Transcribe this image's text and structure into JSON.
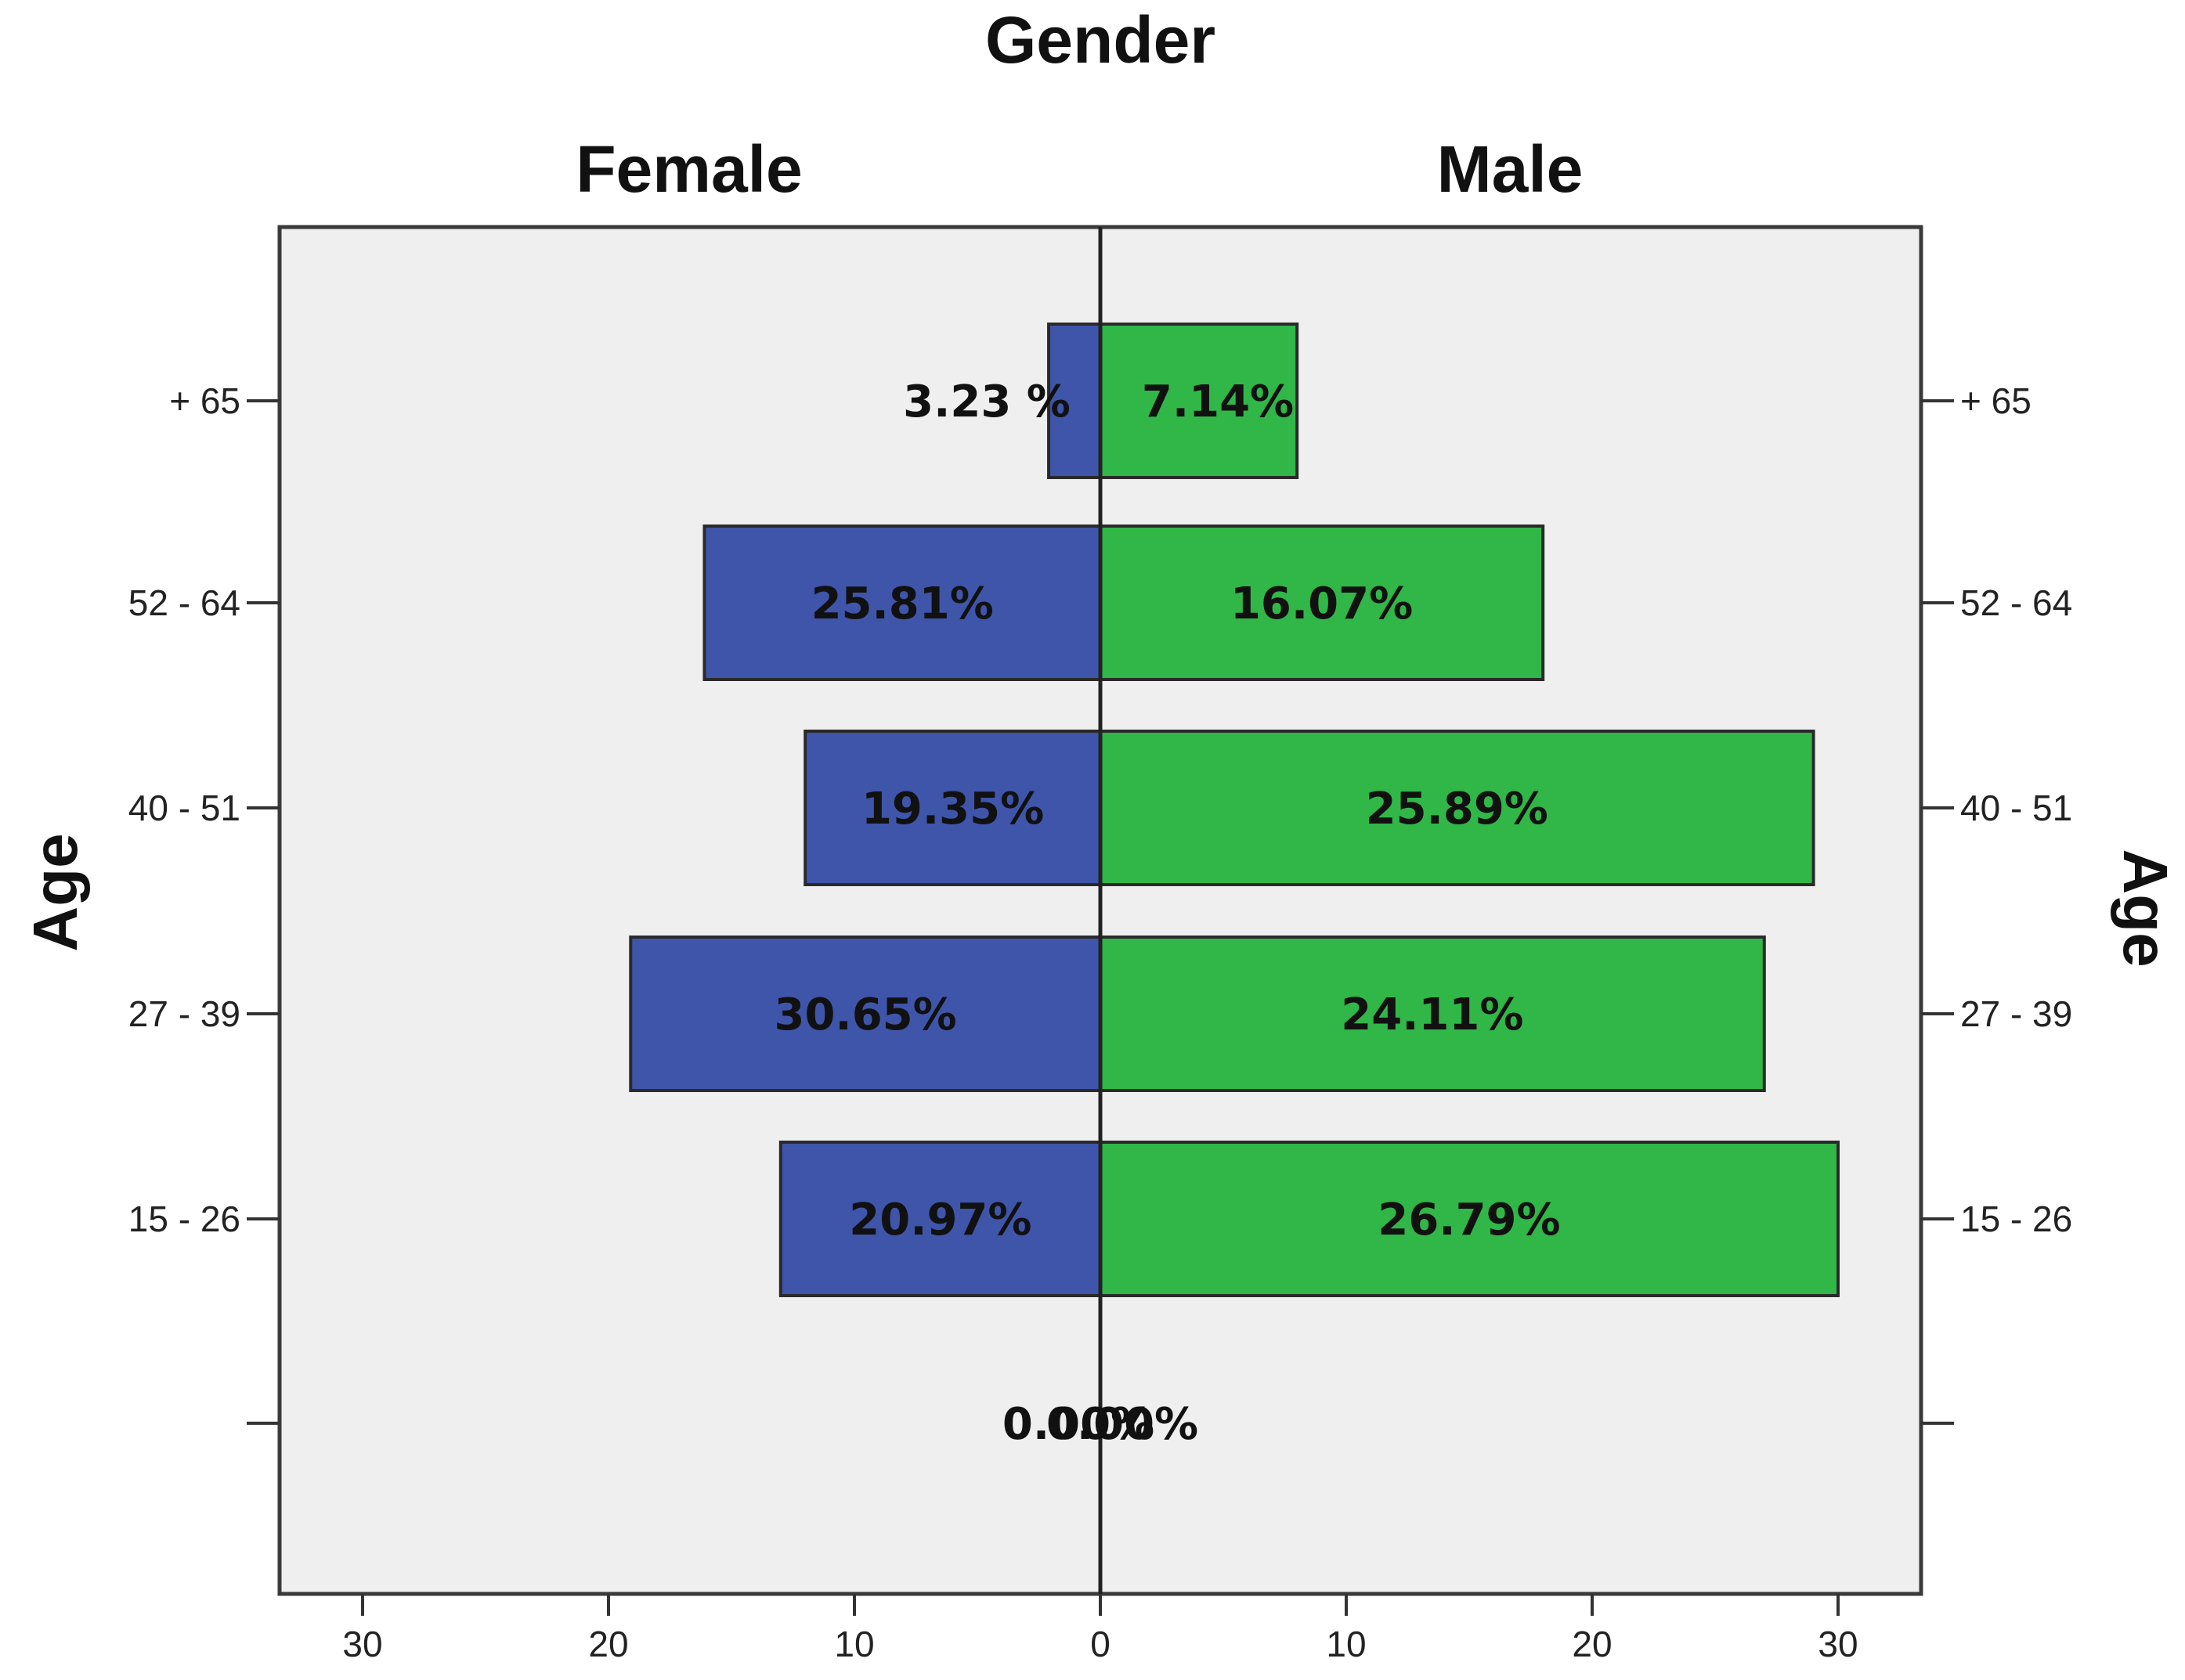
{
  "chart_data": {
    "type": "bar",
    "orientation": "horizontal",
    "layout": "population-pyramid",
    "title": "Gender",
    "ylabel": "Age",
    "xlim": [
      -30,
      30
    ],
    "x_ticks": [
      30,
      20,
      10,
      0,
      10,
      20,
      30
    ],
    "categories": [
      "+ 65",
      "52 - 64",
      "40 - 51",
      "27 - 39",
      "15 - 26",
      ""
    ],
    "series": [
      {
        "name": "Female",
        "side": "left",
        "color": "#3f55aa",
        "values": [
          2.1,
          16.1,
          12.0,
          19.1,
          13.0,
          0.0
        ],
        "labels": [
          "3.23 %",
          "25.81%",
          "19.35%",
          "30.65%",
          "20.97%",
          "0.00%"
        ]
      },
      {
        "name": "Male",
        "side": "right",
        "color": "#30b748",
        "values": [
          8.0,
          18.0,
          29.0,
          27.0,
          30.0,
          0.0
        ],
        "labels": [
          "7.14%",
          "16.07%",
          "25.89%",
          "24.11%",
          "26.79%",
          "0.00%"
        ]
      }
    ],
    "plot_background": "#efefef",
    "grid": false,
    "legend": "none"
  }
}
